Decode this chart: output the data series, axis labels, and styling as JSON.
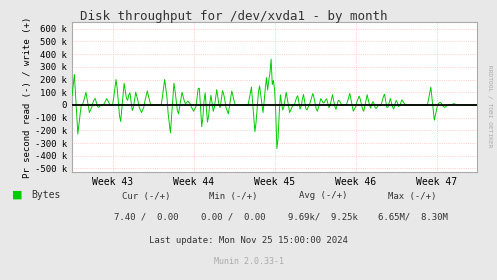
{
  "title": "Disk throughput for /dev/xvda1 - by month",
  "ylabel": "Pr second read (-) / write (+)",
  "xlabel_ticks": [
    "Week 43",
    "Week 44",
    "Week 45",
    "Week 46",
    "Week 47"
  ],
  "yticks": [
    -500000,
    -400000,
    -300000,
    -200000,
    -100000,
    0,
    100000,
    200000,
    300000,
    400000,
    500000,
    600000
  ],
  "ytick_labels": [
    "-500 k",
    "-400 k",
    "-300 k",
    "-200 k",
    "-100 k",
    "0",
    "100 k",
    "200 k",
    "300 k",
    "400 k",
    "500 k",
    "600 k"
  ],
  "ylim": [
    -530000,
    650000
  ],
  "xlim": [
    0,
    350
  ],
  "bg_color": "#e8e8e8",
  "plot_bg_color": "#ffffff",
  "grid_color_minor": "#ffaaaa",
  "line_color": "#00cc00",
  "zero_line_color": "#000000",
  "legend_label": "Bytes",
  "legend_color": "#00cc00",
  "cur_label": "Cur (-/+)",
  "cur_val": "7.40 /  0.00",
  "min_label": "Min (-/+)",
  "min_val": "0.00 /  0.00",
  "avg_label": "Avg (-/+)",
  "avg_val": "9.69k/  9.25k",
  "max_label": "Max (-/+)",
  "max_val": "6.65M/  8.30M",
  "last_update": "Last update: Mon Nov 25 15:00:00 2024",
  "munin_version": "Munin 2.0.33-1",
  "rrdtool_label": "RRDTOOL / TOBI OETIKER",
  "week43_x": 35,
  "week44_x": 105,
  "week45_x": 175,
  "week46_x": 245,
  "week47_x": 315,
  "n_points": 350
}
